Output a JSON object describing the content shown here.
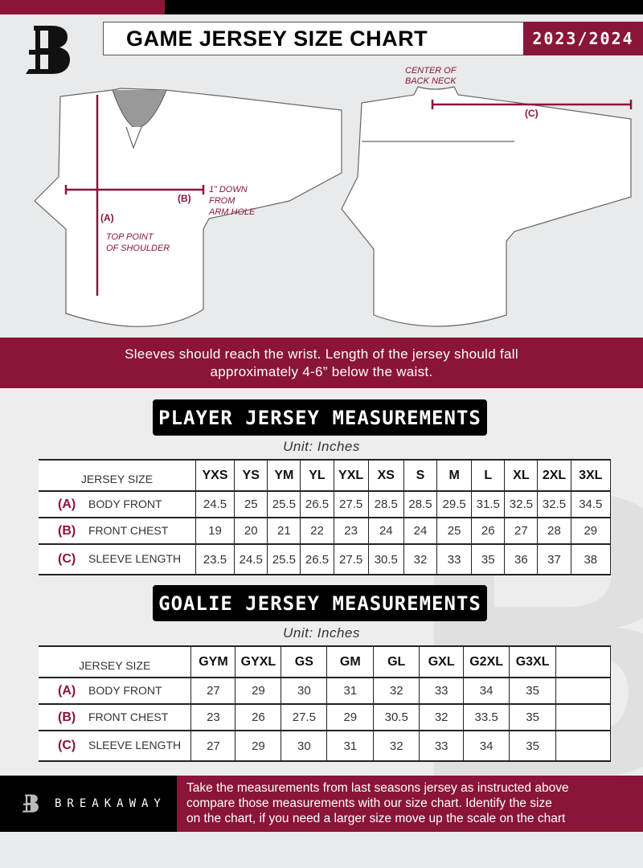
{
  "header": {
    "title": "GAME JERSEY SIZE CHART",
    "season": "2023/2024",
    "logo_letter": "B"
  },
  "diagram": {
    "center_back_neck": [
      "CENTER OF",
      "BACK NECK"
    ],
    "label_a": "(A)",
    "label_b": "(B)",
    "label_c": "(C)",
    "arm_hole_note": [
      "1” DOWN",
      "FROM",
      "ARM HOLE"
    ],
    "shoulder_note": [
      "TOP POINT",
      "OF SHOULDER"
    ]
  },
  "instructions": [
    "Sleeves should reach the wrist. Length of the jersey should fall",
    "approximately 4-6” below the waist."
  ],
  "player": {
    "title": "PLAYER JERSEY MEASUREMENTS",
    "unit": "Unit: Inches",
    "size_header": "JERSEY SIZE",
    "sizes": [
      "YXS",
      "YS",
      "YM",
      "YL",
      "YXL",
      "XS",
      "S",
      "M",
      "L",
      "XL",
      "2XL",
      "3XL"
    ],
    "rows": [
      {
        "code": "(A)",
        "label": "BODY FRONT",
        "values": [
          "24.5",
          "25",
          "25.5",
          "26.5",
          "27.5",
          "28.5",
          "28.5",
          "29.5",
          "31.5",
          "32.5",
          "32.5",
          "34.5"
        ]
      },
      {
        "code": "(B)",
        "label": "FRONT CHEST",
        "values": [
          "19",
          "20",
          "21",
          "22",
          "23",
          "24",
          "24",
          "25",
          "26",
          "27",
          "28",
          "29"
        ]
      },
      {
        "code": "(C)",
        "label": "SLEEVE LENGTH",
        "values": [
          "23.5",
          "24.5",
          "25.5",
          "26.5",
          "27.5",
          "30.5",
          "32",
          "33",
          "35",
          "36",
          "37",
          "38"
        ]
      }
    ]
  },
  "goalie": {
    "title": "GOALIE JERSEY MEASUREMENTS",
    "unit": "Unit: Inches",
    "size_header": "JERSEY SIZE",
    "sizes": [
      "GYM",
      "GYXL",
      "GS",
      "GM",
      "GL",
      "GXL",
      "G2XL",
      "G3XL",
      ""
    ],
    "rows": [
      {
        "code": "(A)",
        "label": "BODY FRONT",
        "values": [
          "27",
          "29",
          "30",
          "31",
          "32",
          "33",
          "34",
          "35",
          ""
        ]
      },
      {
        "code": "(B)",
        "label": "FRONT CHEST",
        "values": [
          "23",
          "26",
          "27.5",
          "29",
          "30.5",
          "32",
          "33.5",
          "35",
          ""
        ]
      },
      {
        "code": "(C)",
        "label": "SLEEVE LENGTH",
        "values": [
          "27",
          "29",
          "30",
          "31",
          "32",
          "33",
          "34",
          "35",
          ""
        ]
      }
    ]
  },
  "footer": {
    "brand": "BREAKAWAY",
    "note": [
      "Take the measurements from last seasons jersey as instructed above",
      "compare those measurements  with our size chart. Identify the size",
      "on the chart, if you need a larger size move up the scale on the chart"
    ]
  },
  "colors": {
    "brand": "#8a1538",
    "dark": "#000000",
    "background": "#e9eaeb"
  }
}
